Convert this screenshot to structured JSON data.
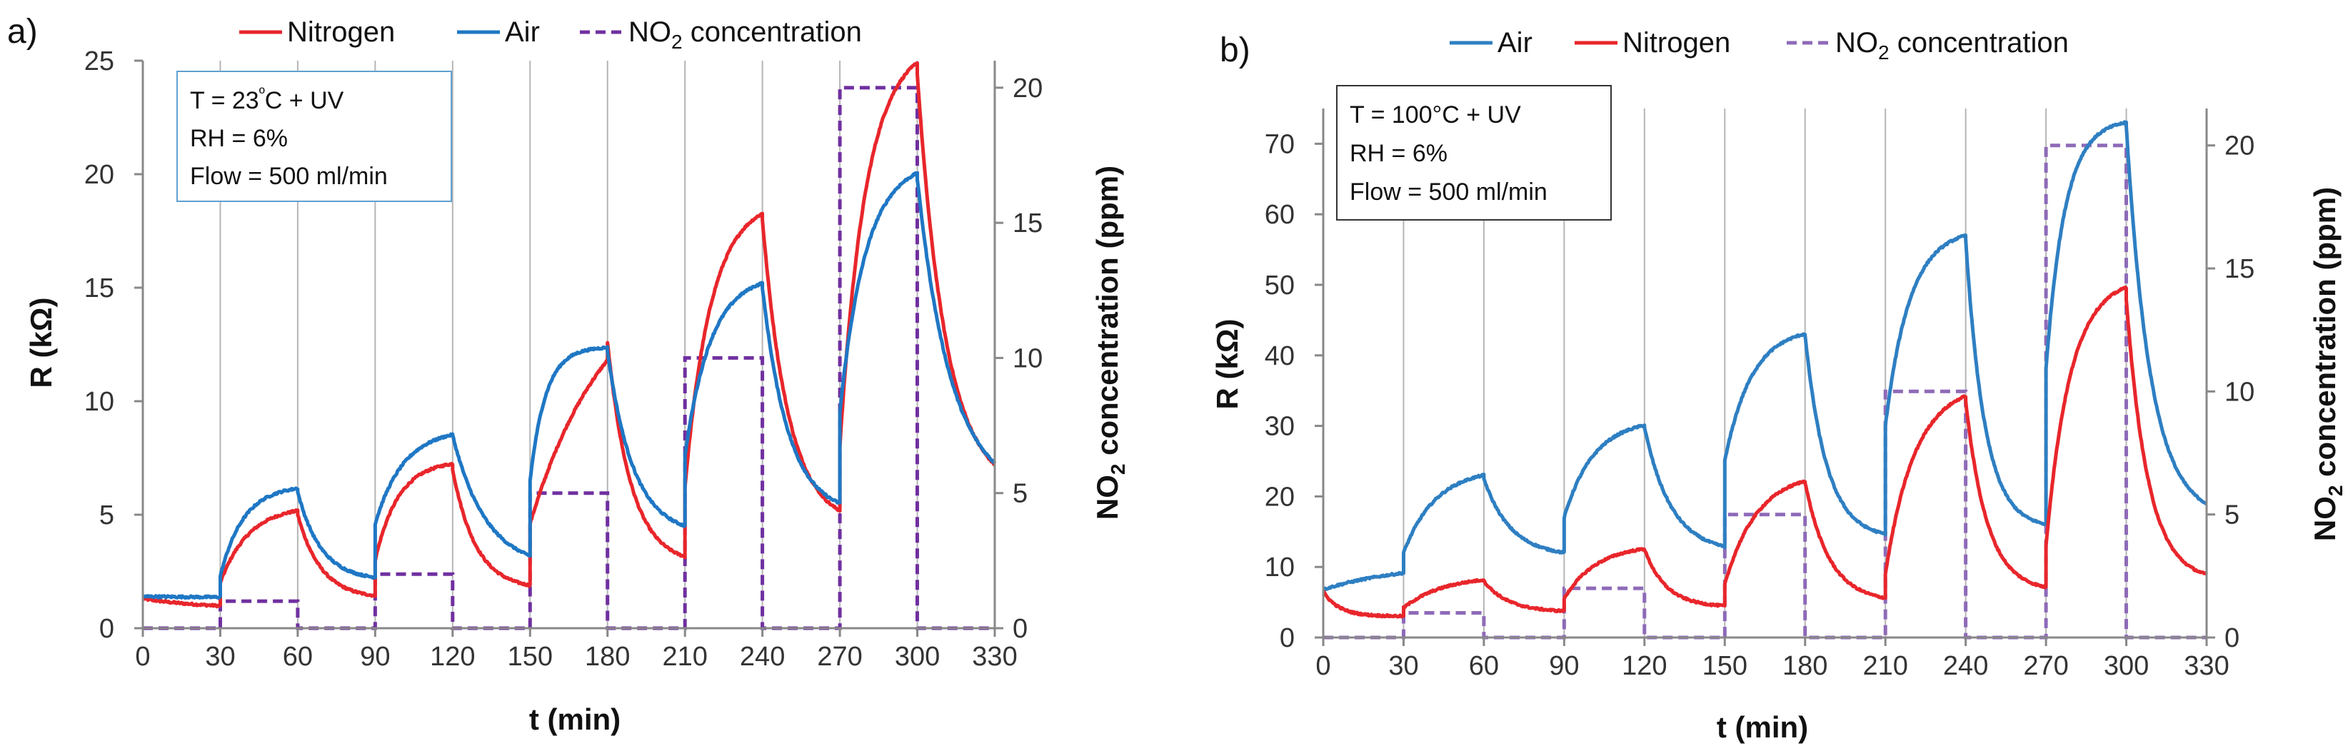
{
  "chart_data": [
    {
      "panel_label": "a)",
      "type": "line",
      "xlabel": "t (min)",
      "ylabel": "R (kΩ)",
      "y2label": "NO2 concentration (ppm)",
      "xlim": [
        0,
        330
      ],
      "ylim": [
        0,
        25
      ],
      "y2lim": [
        0,
        21
      ],
      "xticks": [
        0,
        30,
        60,
        90,
        120,
        150,
        180,
        210,
        240,
        270,
        300,
        330
      ],
      "yticks": [
        0,
        5,
        10,
        15,
        20,
        25
      ],
      "y2ticks": [
        0,
        5,
        10,
        15,
        20
      ],
      "vlines": [
        30,
        60,
        90,
        120,
        150,
        180,
        210,
        240,
        270,
        300
      ],
      "annotation": [
        "T = 23ºC + UV",
        "RH = 6%",
        "Flow = 500 ml/min"
      ],
      "legend": [
        "Nitrogen",
        "Air",
        "NO2 concentration"
      ],
      "series": [
        {
          "name": "Nitrogen",
          "color": "#e8262b",
          "segments": [
            {
              "t0": 0,
              "t1": 30,
              "y0": 1.3,
              "yinf": 0.85,
              "tau": 25
            },
            {
              "t0": 30,
              "t1": 60,
              "y0": 2.0,
              "yinf": 5.4,
              "tau": 11
            },
            {
              "t0": 60,
              "t1": 90,
              "y0": 5.0,
              "yinf": 1.3,
              "tau": 9
            },
            {
              "t0": 90,
              "t1": 120,
              "y0": 3.0,
              "yinf": 7.4,
              "tau": 9
            },
            {
              "t0": 120,
              "t1": 150,
              "y0": 7.0,
              "yinf": 1.7,
              "tau": 9
            },
            {
              "t0": 150,
              "t1": 180,
              "y0": 4.6,
              "yinf": 16.0,
              "tau": 30
            },
            {
              "t0": 180,
              "t1": 210,
              "y0": 12.6,
              "yinf": 2.8,
              "tau": 9
            },
            {
              "t0": 210,
              "t1": 240,
              "y0": 6.2,
              "yinf": 18.9,
              "tau": 10
            },
            {
              "t0": 240,
              "t1": 270,
              "y0": 18.0,
              "yinf": 4.5,
              "tau": 10
            },
            {
              "t0": 270,
              "t1": 300,
              "y0": 8.0,
              "yinf": 25.8,
              "tau": 10
            },
            {
              "t0": 300,
              "t1": 330,
              "y0": 24.4,
              "yinf": 6.0,
              "tau": 11
            }
          ]
        },
        {
          "name": "Air",
          "color": "#1f77c4",
          "segments": [
            {
              "t0": 0,
              "t1": 30,
              "y0": 1.4,
              "yinf": 1.35,
              "tau": 30
            },
            {
              "t0": 30,
              "t1": 60,
              "y0": 2.3,
              "yinf": 6.3,
              "tau": 9
            },
            {
              "t0": 60,
              "t1": 90,
              "y0": 6.0,
              "yinf": 2.1,
              "tau": 9
            },
            {
              "t0": 90,
              "t1": 120,
              "y0": 4.6,
              "yinf": 8.8,
              "tau": 11
            },
            {
              "t0": 120,
              "t1": 150,
              "y0": 8.5,
              "yinf": 2.6,
              "tau": 13
            },
            {
              "t0": 150,
              "t1": 180,
              "y0": 6.5,
              "yinf": 12.4,
              "tau": 6
            },
            {
              "t0": 180,
              "t1": 210,
              "y0": 12.2,
              "yinf": 4.1,
              "tau": 10
            },
            {
              "t0": 210,
              "t1": 240,
              "y0": 7.6,
              "yinf": 15.6,
              "tau": 10
            },
            {
              "t0": 240,
              "t1": 270,
              "y0": 15.0,
              "yinf": 5.0,
              "tau": 10
            },
            {
              "t0": 270,
              "t1": 300,
              "y0": 9.5,
              "yinf": 20.6,
              "tau": 10
            },
            {
              "t0": 300,
              "t1": 330,
              "y0": 19.8,
              "yinf": 5.9,
              "tau": 13
            }
          ]
        }
      ],
      "no2_steps": {
        "name": "NO2 concentration",
        "color": "#7030a0",
        "t": [
          0,
          30,
          30,
          60,
          60,
          90,
          90,
          120,
          120,
          150,
          150,
          180,
          180,
          210,
          210,
          240,
          240,
          270,
          270,
          300,
          300,
          330
        ],
        "v": [
          0,
          0,
          1,
          1,
          0,
          0,
          2,
          2,
          0,
          0,
          5,
          5,
          0,
          0,
          10,
          10,
          0,
          0,
          20,
          20,
          0,
          0
        ]
      }
    },
    {
      "panel_label": "b)",
      "type": "line",
      "xlabel": "t (min)",
      "ylabel": "R (kΩ)",
      "y2label": "NO2 concentration (ppm)",
      "xlim": [
        0,
        330
      ],
      "ylim": [
        0,
        75
      ],
      "y2lim": [
        0,
        21.5
      ],
      "xticks": [
        0,
        30,
        60,
        90,
        120,
        150,
        180,
        210,
        240,
        270,
        300,
        330
      ],
      "yticks": [
        0,
        10,
        20,
        30,
        40,
        50,
        60,
        70
      ],
      "y2ticks": [
        0,
        5,
        10,
        15,
        20
      ],
      "vlines": [
        30,
        60,
        90,
        120,
        150,
        180,
        210,
        240,
        270,
        300
      ],
      "annotation": [
        "T = 100°C + UV",
        "RH = 6%",
        "Flow = 500 ml/min"
      ],
      "legend": [
        "Air",
        "Nitrogen",
        "NO2 concentration"
      ],
      "series": [
        {
          "name": "Air",
          "color": "#2e7fc2",
          "segments": [
            {
              "t0": 0,
              "t1": 30,
              "y0": 6.8,
              "yinf": 10.5,
              "tau": 30
            },
            {
              "t0": 30,
              "t1": 60,
              "y0": 12.0,
              "yinf": 24.0,
              "tau": 12
            },
            {
              "t0": 60,
              "t1": 90,
              "y0": 22.5,
              "yinf": 11.5,
              "tau": 10
            },
            {
              "t0": 90,
              "t1": 120,
              "y0": 17.0,
              "yinf": 31.0,
              "tau": 11
            },
            {
              "t0": 120,
              "t1": 150,
              "y0": 29.8,
              "yinf": 12.0,
              "tau": 10
            },
            {
              "t0": 150,
              "t1": 180,
              "y0": 25.0,
              "yinf": 44.0,
              "tau": 10
            },
            {
              "t0": 180,
              "t1": 210,
              "y0": 42.8,
              "yinf": 14.0,
              "tau": 8
            },
            {
              "t0": 210,
              "t1": 240,
              "y0": 30.0,
              "yinf": 58.0,
              "tau": 9
            },
            {
              "t0": 240,
              "t1": 270,
              "y0": 56.5,
              "yinf": 15.5,
              "tau": 7
            },
            {
              "t0": 270,
              "t1": 300,
              "y0": 38.0,
              "yinf": 73.5,
              "tau": 7
            },
            {
              "t0": 300,
              "t1": 330,
              "y0": 72.5,
              "yinf": 17.0,
              "tau": 9
            }
          ]
        },
        {
          "name": "Nitrogen",
          "color": "#e8262b",
          "segments": [
            {
              "t0": 0,
              "t1": 30,
              "y0": 6.5,
              "yinf": 3.0,
              "tau": 6
            },
            {
              "t0": 30,
              "t1": 60,
              "y0": 4.2,
              "yinf": 8.8,
              "tau": 15
            },
            {
              "t0": 60,
              "t1": 90,
              "y0": 8.0,
              "yinf": 3.6,
              "tau": 9
            },
            {
              "t0": 90,
              "t1": 120,
              "y0": 5.5,
              "yinf": 13.2,
              "tau": 12
            },
            {
              "t0": 120,
              "t1": 150,
              "y0": 12.5,
              "yinf": 4.3,
              "tau": 8
            },
            {
              "t0": 150,
              "t1": 180,
              "y0": 7.5,
              "yinf": 23.5,
              "tau": 12
            },
            {
              "t0": 180,
              "t1": 210,
              "y0": 22.0,
              "yinf": 5.0,
              "tau": 9
            },
            {
              "t0": 210,
              "t1": 240,
              "y0": 9.0,
              "yinf": 36.0,
              "tau": 11
            },
            {
              "t0": 240,
              "t1": 270,
              "y0": 33.5,
              "yinf": 6.5,
              "tau": 8
            },
            {
              "t0": 270,
              "t1": 300,
              "y0": 13.0,
              "yinf": 51.0,
              "tau": 9
            },
            {
              "t0": 300,
              "t1": 330,
              "y0": 48.0,
              "yinf": 8.0,
              "tau": 8
            }
          ]
        }
      ],
      "no2_steps": {
        "name": "NO2 concentration",
        "color": "#8e6ab8",
        "t": [
          0,
          30,
          30,
          60,
          60,
          90,
          90,
          120,
          120,
          150,
          150,
          180,
          180,
          210,
          210,
          240,
          240,
          270,
          270,
          300,
          300,
          330
        ],
        "v": [
          0,
          0,
          1,
          1,
          0,
          0,
          2,
          2,
          0,
          0,
          5,
          5,
          0,
          0,
          10,
          10,
          0,
          0,
          20,
          20,
          0,
          0
        ]
      }
    }
  ]
}
